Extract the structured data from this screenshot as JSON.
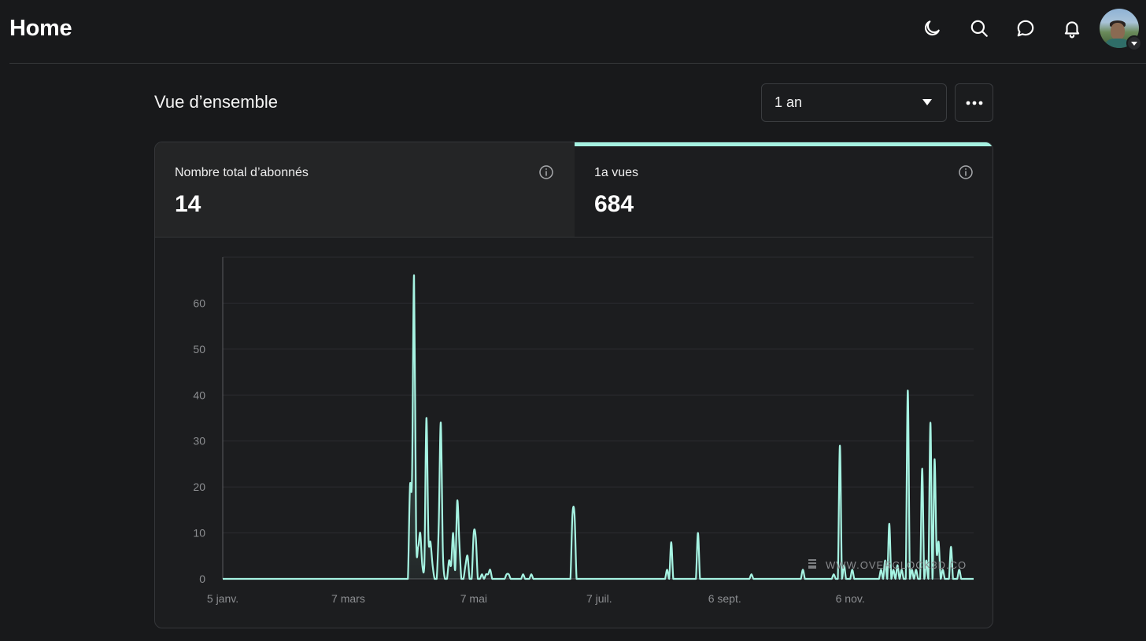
{
  "header": {
    "title": "Home"
  },
  "icons": {
    "theme": "moon-icon",
    "search": "search-icon",
    "chat": "chat-bubble-icon",
    "notifications": "bell-icon",
    "avatar_caret": "caret-down-icon"
  },
  "overview": {
    "title": "Vue d’ensemble",
    "range_selected": "1 an"
  },
  "stats": [
    {
      "label": "Nombre total d’abonnés",
      "value": "14"
    },
    {
      "label": "1a vues",
      "value": "684"
    }
  ],
  "colors": {
    "accent": "#a6f3e2",
    "background": "#18191b",
    "card": "#1c1d1f"
  },
  "watermark": "WWW.OVERCLOCK3D.CO",
  "chart_data": {
    "type": "area",
    "x_tick_labels": [
      "5 janv.",
      "7 mars",
      "7 mai",
      "7 juil.",
      "6 sept.",
      "6 nov."
    ],
    "x_tick_days": [
      0,
      61,
      122,
      183,
      244,
      305
    ],
    "y_ticks": [
      0,
      10,
      20,
      30,
      40,
      50,
      60
    ],
    "ylim": [
      0,
      70
    ],
    "x_range_days": [
      0,
      365
    ],
    "grid": true,
    "series": [
      {
        "values": [
          [
            90,
            0
          ],
          [
            91,
            20
          ],
          [
            92,
            22
          ],
          [
            93,
            66
          ],
          [
            94,
            10
          ],
          [
            95,
            7
          ],
          [
            96,
            10
          ],
          [
            97,
            3
          ],
          [
            98,
            3
          ],
          [
            99,
            35
          ],
          [
            100,
            9
          ],
          [
            101,
            8
          ],
          [
            102,
            3
          ],
          [
            103,
            0
          ],
          [
            105,
            12
          ],
          [
            106,
            34
          ],
          [
            107,
            6
          ],
          [
            108,
            0
          ],
          [
            110,
            4
          ],
          [
            111,
            3
          ],
          [
            112,
            10
          ],
          [
            113,
            2
          ],
          [
            114,
            17
          ],
          [
            115,
            8
          ],
          [
            116,
            0
          ],
          [
            118,
            3
          ],
          [
            119,
            5
          ],
          [
            120,
            0
          ],
          [
            122,
            10
          ],
          [
            123,
            9
          ],
          [
            124,
            0
          ],
          [
            126,
            1
          ],
          [
            128,
            1
          ],
          [
            129,
            1
          ],
          [
            130,
            2
          ],
          [
            138,
            1
          ],
          [
            139,
            1
          ],
          [
            146,
            1
          ],
          [
            150,
            1
          ],
          [
            170,
            14
          ],
          [
            171,
            14
          ],
          [
            216,
            2
          ],
          [
            218,
            8
          ],
          [
            231,
            10
          ],
          [
            257,
            1
          ],
          [
            282,
            2
          ],
          [
            297,
            1
          ],
          [
            300,
            29
          ],
          [
            302,
            3
          ],
          [
            306,
            2
          ],
          [
            320,
            2
          ],
          [
            322,
            4
          ],
          [
            324,
            12
          ],
          [
            326,
            2
          ],
          [
            328,
            3
          ],
          [
            330,
            2
          ],
          [
            333,
            41
          ],
          [
            335,
            2
          ],
          [
            337,
            2
          ],
          [
            340,
            24
          ],
          [
            342,
            4
          ],
          [
            344,
            34
          ],
          [
            346,
            26
          ],
          [
            347,
            6
          ],
          [
            348,
            8
          ],
          [
            350,
            2
          ],
          [
            354,
            7
          ],
          [
            358,
            2
          ]
        ]
      }
    ]
  }
}
